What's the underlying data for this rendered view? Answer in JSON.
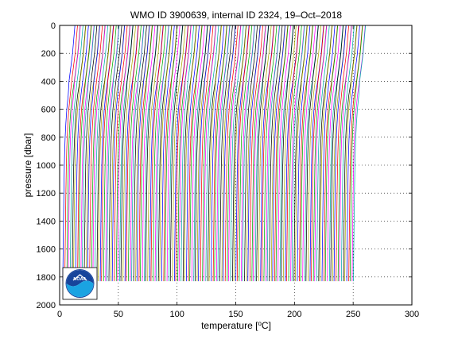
{
  "figure": {
    "title": "WMO ID 3900639, internal ID 2324, 19–Oct–2018",
    "logo_text": "NOAA"
  },
  "chart_data": {
    "type": "line",
    "title": "WMO ID 3900639, internal ID 2324, 19–Oct–2018",
    "xlabel": "temperature [°C]",
    "xlabel_parts": {
      "before": "temperature [",
      "superscript": "o",
      "after": "C]"
    },
    "ylabel": "pressure [dbar]",
    "xlim": [
      0,
      300
    ],
    "ylim": [
      0,
      2000
    ],
    "y_reversed": true,
    "xticks": [
      0,
      50,
      100,
      150,
      200,
      250,
      300
    ],
    "yticks": [
      0,
      200,
      400,
      600,
      800,
      1000,
      1200,
      1400,
      1600,
      1800,
      2000
    ],
    "grid": "dotted",
    "offset_per_profile_degC": 1.5,
    "n_profiles": 166,
    "series_colors": [
      "#0000ff",
      "#ff0000",
      "#00aa00",
      "#ff00ff",
      "#00aaaa",
      "#000000",
      "#aaaa00"
    ],
    "profile_shape": {
      "pressure_dbar": [
        0,
        100,
        200,
        300,
        400,
        500,
        600,
        700,
        800,
        900,
        1000,
        1200,
        1400,
        1600,
        1830
      ],
      "temperature_degC": [
        14.0,
        13.0,
        12.0,
        10.5,
        9.0,
        7.6,
        6.4,
        5.6,
        5.0,
        4.6,
        4.3,
        3.9,
        3.6,
        3.3,
        3.0
      ]
    }
  }
}
